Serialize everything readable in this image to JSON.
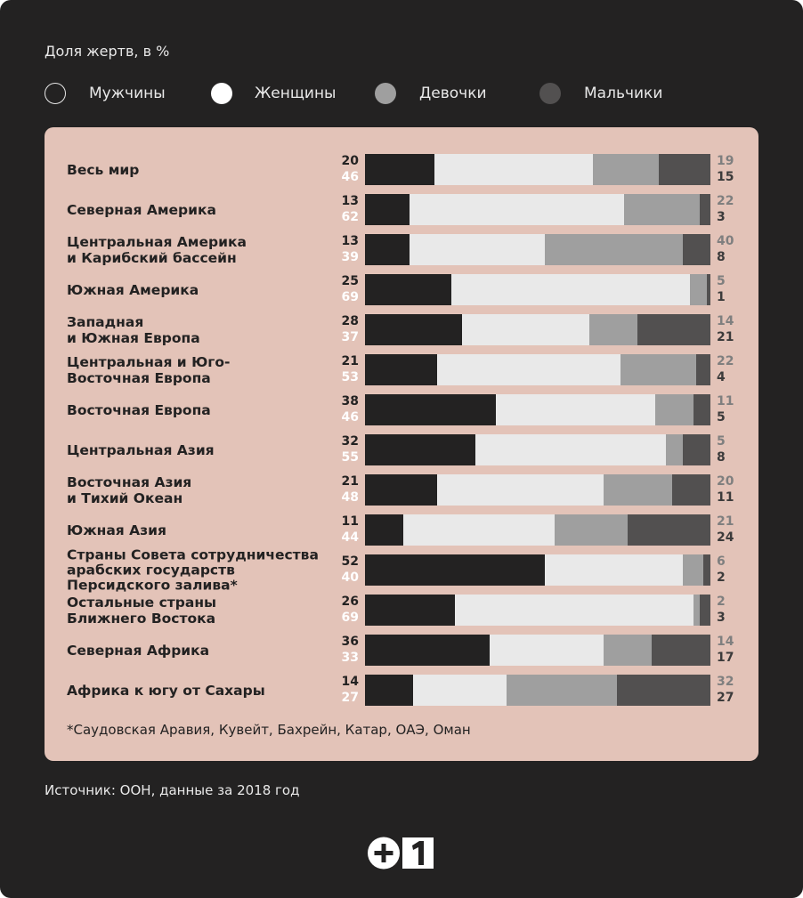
{
  "chart_data": {
    "type": "bar",
    "stacked": true,
    "orientation": "horizontal",
    "title": "Доля жертв, в %",
    "legend": [
      {
        "name": "Мужчины",
        "color": "#232222"
      },
      {
        "name": "Женщины",
        "color": "#e9e9e9"
      },
      {
        "name": "Девочки",
        "color": "#9f9f9f"
      },
      {
        "name": "Мальчики",
        "color": "#525050"
      }
    ],
    "categories": [
      "Весь мир",
      "Северная Америка",
      "Центральная Америка\nи Карибский бассейн",
      "Южная Америка",
      "Западная\nи Южная Европа",
      "Центральная и Юго-\nВосточная Европа",
      "Восточная Европа",
      "Центральная Азия",
      "Восточная Азия\nи Тихий Океан",
      "Южная Азия",
      "Страны Совета сотрудничества\nарабских государств\nПерсидского залива*",
      "Остальные страны\nБлижнего Востока",
      "Северная Африка",
      "Африка к югу от Сахары"
    ],
    "series": [
      {
        "name": "Мужчины",
        "values": [
          20,
          13,
          13,
          25,
          28,
          21,
          38,
          32,
          21,
          11,
          52,
          26,
          36,
          14
        ]
      },
      {
        "name": "Женщины",
        "values": [
          46,
          62,
          39,
          69,
          37,
          53,
          46,
          55,
          48,
          44,
          40,
          69,
          33,
          27
        ]
      },
      {
        "name": "Девочки",
        "values": [
          19,
          22,
          40,
          5,
          14,
          22,
          11,
          5,
          20,
          21,
          6,
          2,
          14,
          32
        ]
      },
      {
        "name": "Мальчики",
        "values": [
          15,
          3,
          8,
          1,
          21,
          4,
          5,
          8,
          11,
          24,
          2,
          3,
          17,
          27
        ]
      }
    ],
    "xlim": [
      0,
      100
    ],
    "footnote": "*Саудовская Аравия, Кувейт, Бахрейн, Катар, ОАЭ, Оман",
    "source": "Источник: ООН, данные за 2018 год"
  },
  "logo_text": "+1"
}
